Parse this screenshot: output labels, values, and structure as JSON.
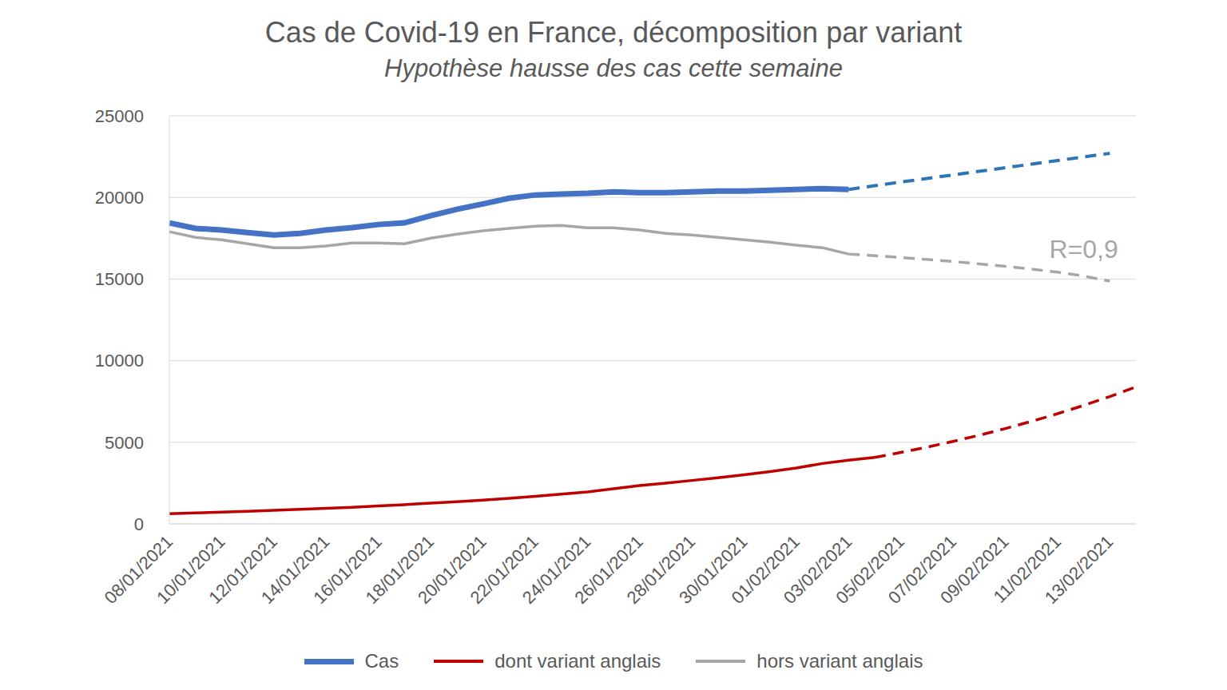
{
  "chart_data": {
    "type": "line",
    "title": "Cas de Covid-19 en France, décomposition par variant",
    "subtitle": "Hypothèse hausse des cas cette semaine",
    "categories": [
      "08/01/2021",
      null,
      "10/01/2021",
      null,
      "12/01/2021",
      null,
      "14/01/2021",
      null,
      "16/01/2021",
      null,
      "18/01/2021",
      null,
      "20/01/2021",
      null,
      "22/01/2021",
      null,
      "24/01/2021",
      null,
      "26/01/2021",
      null,
      "28/01/2021",
      null,
      "30/01/2021",
      null,
      "01/02/2021",
      null,
      "03/02/2021",
      null,
      "05/02/2021",
      null,
      "07/02/2021",
      null,
      "09/02/2021",
      null,
      "11/02/2021",
      null,
      "13/02/2021",
      null
    ],
    "series": [
      {
        "name": "Cas",
        "color": "#4472c4",
        "line_style": "solid",
        "values": [
          18440,
          18100,
          18000,
          17850,
          17700,
          17800,
          18000,
          18150,
          18340,
          18440,
          18880,
          19270,
          19600,
          19950,
          20150,
          20200,
          20250,
          20340,
          20290,
          20290,
          20340,
          20390,
          20390,
          20440,
          20490,
          20540,
          20490,
          null,
          null,
          null,
          null,
          null,
          null,
          null,
          null,
          null,
          null,
          null
        ]
      },
      {
        "color": "#2e75b6",
        "line_style": "dashed",
        "values": [
          null,
          null,
          null,
          null,
          null,
          null,
          null,
          null,
          null,
          null,
          null,
          null,
          null,
          null,
          null,
          null,
          null,
          null,
          null,
          null,
          null,
          null,
          null,
          null,
          null,
          null,
          20490,
          20720,
          20940,
          21160,
          21380,
          21600,
          21820,
          22040,
          22260,
          22480,
          22700,
          null
        ]
      },
      {
        "name": "dont variant anglais",
        "color": "#c00000",
        "line_style": "solid",
        "values": [
          620,
          670,
          720,
          770,
          830,
          890,
          950,
          1020,
          1100,
          1180,
          1270,
          1360,
          1460,
          1570,
          1690,
          1820,
          1960,
          2150,
          2350,
          2500,
          2660,
          2830,
          3010,
          3200,
          3420,
          3700,
          3900,
          4070,
          null,
          null,
          null,
          null,
          null,
          null,
          null,
          null,
          null,
          null
        ]
      },
      {
        "color": "#c00000",
        "line_style": "dashed",
        "values": [
          null,
          null,
          null,
          null,
          null,
          null,
          null,
          null,
          null,
          null,
          null,
          null,
          null,
          null,
          null,
          null,
          null,
          null,
          null,
          null,
          null,
          null,
          null,
          null,
          null,
          null,
          null,
          4070,
          4375,
          4700,
          5055,
          5430,
          5840,
          6280,
          6750,
          7260,
          7800,
          8390
        ]
      },
      {
        "name": "hors variant anglais",
        "color": "#a6a6a6",
        "line_style": "solid",
        "values": [
          17900,
          17550,
          17400,
          17160,
          16920,
          16920,
          17020,
          17210,
          17210,
          17160,
          17500,
          17750,
          17950,
          18100,
          18240,
          18290,
          18140,
          18140,
          18000,
          17800,
          17700,
          17550,
          17400,
          17260,
          17070,
          16920,
          16530,
          null,
          null,
          null,
          null,
          null,
          null,
          null,
          null,
          null,
          null,
          null
        ]
      },
      {
        "color": "#a6a6a6",
        "line_style": "dashed",
        "values": [
          null,
          null,
          null,
          null,
          null,
          null,
          null,
          null,
          null,
          null,
          null,
          null,
          null,
          null,
          null,
          null,
          null,
          null,
          null,
          null,
          null,
          null,
          null,
          null,
          null,
          null,
          16530,
          16430,
          16320,
          16200,
          16070,
          15930,
          15780,
          15610,
          15420,
          15190,
          14870,
          null
        ]
      }
    ],
    "annotations": [
      {
        "text": "R=0,9",
        "x": 35,
        "y": 16700,
        "color": "#a6a6a6"
      }
    ],
    "ylim": [
      0,
      25000
    ],
    "yticks": [
      0,
      5000,
      10000,
      15000,
      20000,
      25000
    ],
    "grid": true,
    "legend": "bottom"
  }
}
